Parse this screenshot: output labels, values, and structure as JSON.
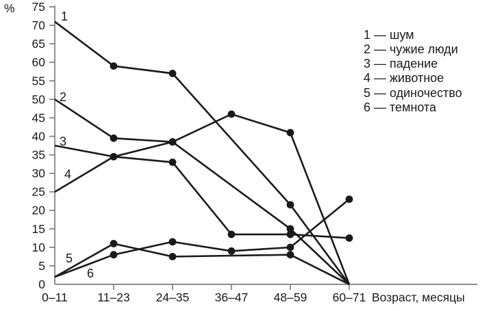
{
  "figure_title": "",
  "y_axis_unit": "%",
  "x_axis_title": "Возраст, месяцы",
  "chart_data": {
    "type": "line",
    "categories": [
      "0–11",
      "11–23",
      "24–35",
      "36–47",
      "48–59",
      "60–71"
    ],
    "xlabel": "Возраст, месяцы",
    "ylabel": "%",
    "ylim": [
      0,
      75
    ],
    "ytick_step": 5,
    "grid": false,
    "legend_position": "top-right",
    "line_color": "#1a1a1a",
    "axis_color": "#7d7d7d",
    "series": [
      {
        "id": "1",
        "name": "шум",
        "values": [
          71,
          59,
          57,
          null,
          21.5,
          0
        ],
        "markers": [
          false,
          true,
          true,
          false,
          true,
          false
        ]
      },
      {
        "id": "2",
        "name": "чужие люди",
        "values": [
          50,
          39.5,
          38.5,
          null,
          15,
          0
        ],
        "markers": [
          false,
          true,
          true,
          false,
          true,
          false
        ]
      },
      {
        "id": "3",
        "name": "падение",
        "values": [
          37.5,
          34.5,
          33,
          13.5,
          13.5,
          12.5
        ],
        "markers": [
          false,
          true,
          true,
          true,
          true,
          true
        ]
      },
      {
        "id": "4",
        "name": "животное",
        "values": [
          25,
          34.5,
          38.5,
          46,
          41,
          0
        ],
        "markers": [
          false,
          true,
          true,
          true,
          true,
          false
        ]
      },
      {
        "id": "5",
        "name": "одиночество",
        "values": [
          2,
          11,
          7.5,
          null,
          8,
          0
        ],
        "markers": [
          false,
          true,
          true,
          false,
          true,
          false
        ]
      },
      {
        "id": "6",
        "name": "темнота",
        "values": [
          2,
          8,
          11.5,
          9,
          10,
          23
        ],
        "markers": [
          false,
          true,
          true,
          true,
          true,
          true
        ]
      }
    ],
    "legend_items": [
      "1 — шум",
      "2 — чужие люди",
      "3 — падение",
      "4 — животное",
      "5 — одиночество",
      "6 — темнота"
    ]
  }
}
